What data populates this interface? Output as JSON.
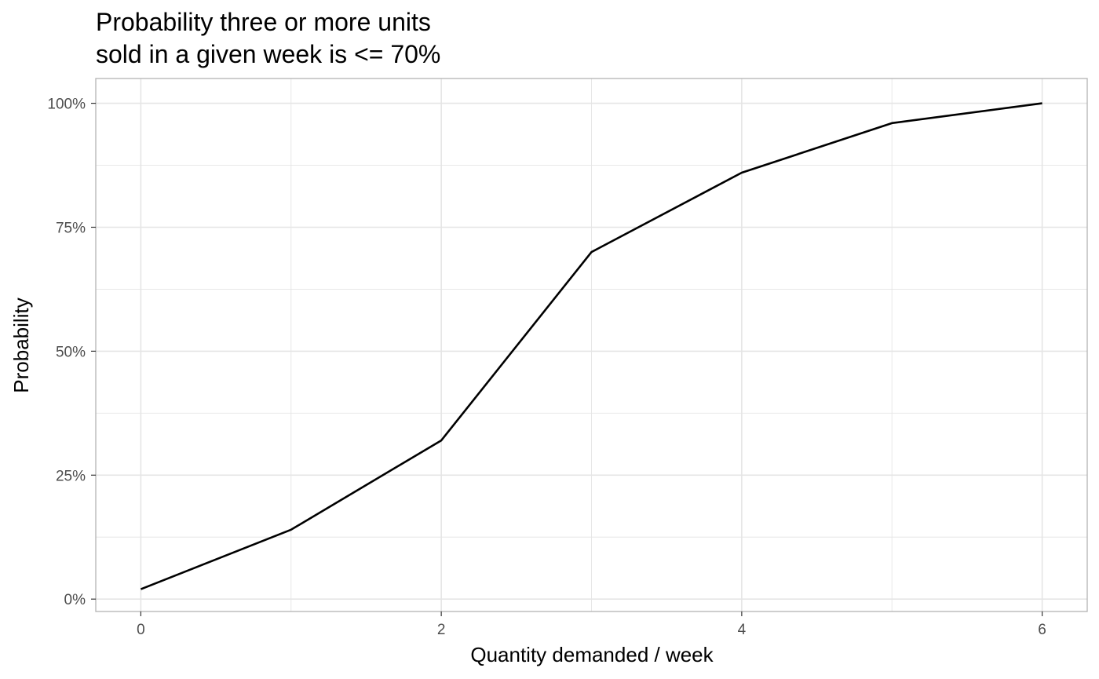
{
  "chart_data": {
    "type": "line",
    "title_lines": [
      "Probability three or more units",
      "sold in a given week is <= 70%"
    ],
    "xlabel": "Quantity demanded / week",
    "ylabel": "Probability",
    "x": [
      0,
      1,
      2,
      3,
      4,
      5,
      6
    ],
    "series": [
      {
        "values": [
          0.02,
          0.14,
          0.32,
          0.7,
          0.86,
          0.96,
          1.0
        ]
      }
    ],
    "xlim": [
      -0.3,
      6.3
    ],
    "ylim": [
      -0.025,
      1.05
    ],
    "x_ticks": [
      0,
      2,
      4,
      6
    ],
    "x_tick_labels": [
      "0",
      "2",
      "4",
      "6"
    ],
    "y_ticks": [
      0,
      0.25,
      0.5,
      0.75,
      1.0
    ],
    "y_tick_labels": [
      "0%",
      "25%",
      "50%",
      "75%",
      "100%"
    ],
    "grid": true,
    "colors": {
      "line": "#000000",
      "grid": "#e5e5e5",
      "panel_border": "#b3b3b3"
    }
  }
}
